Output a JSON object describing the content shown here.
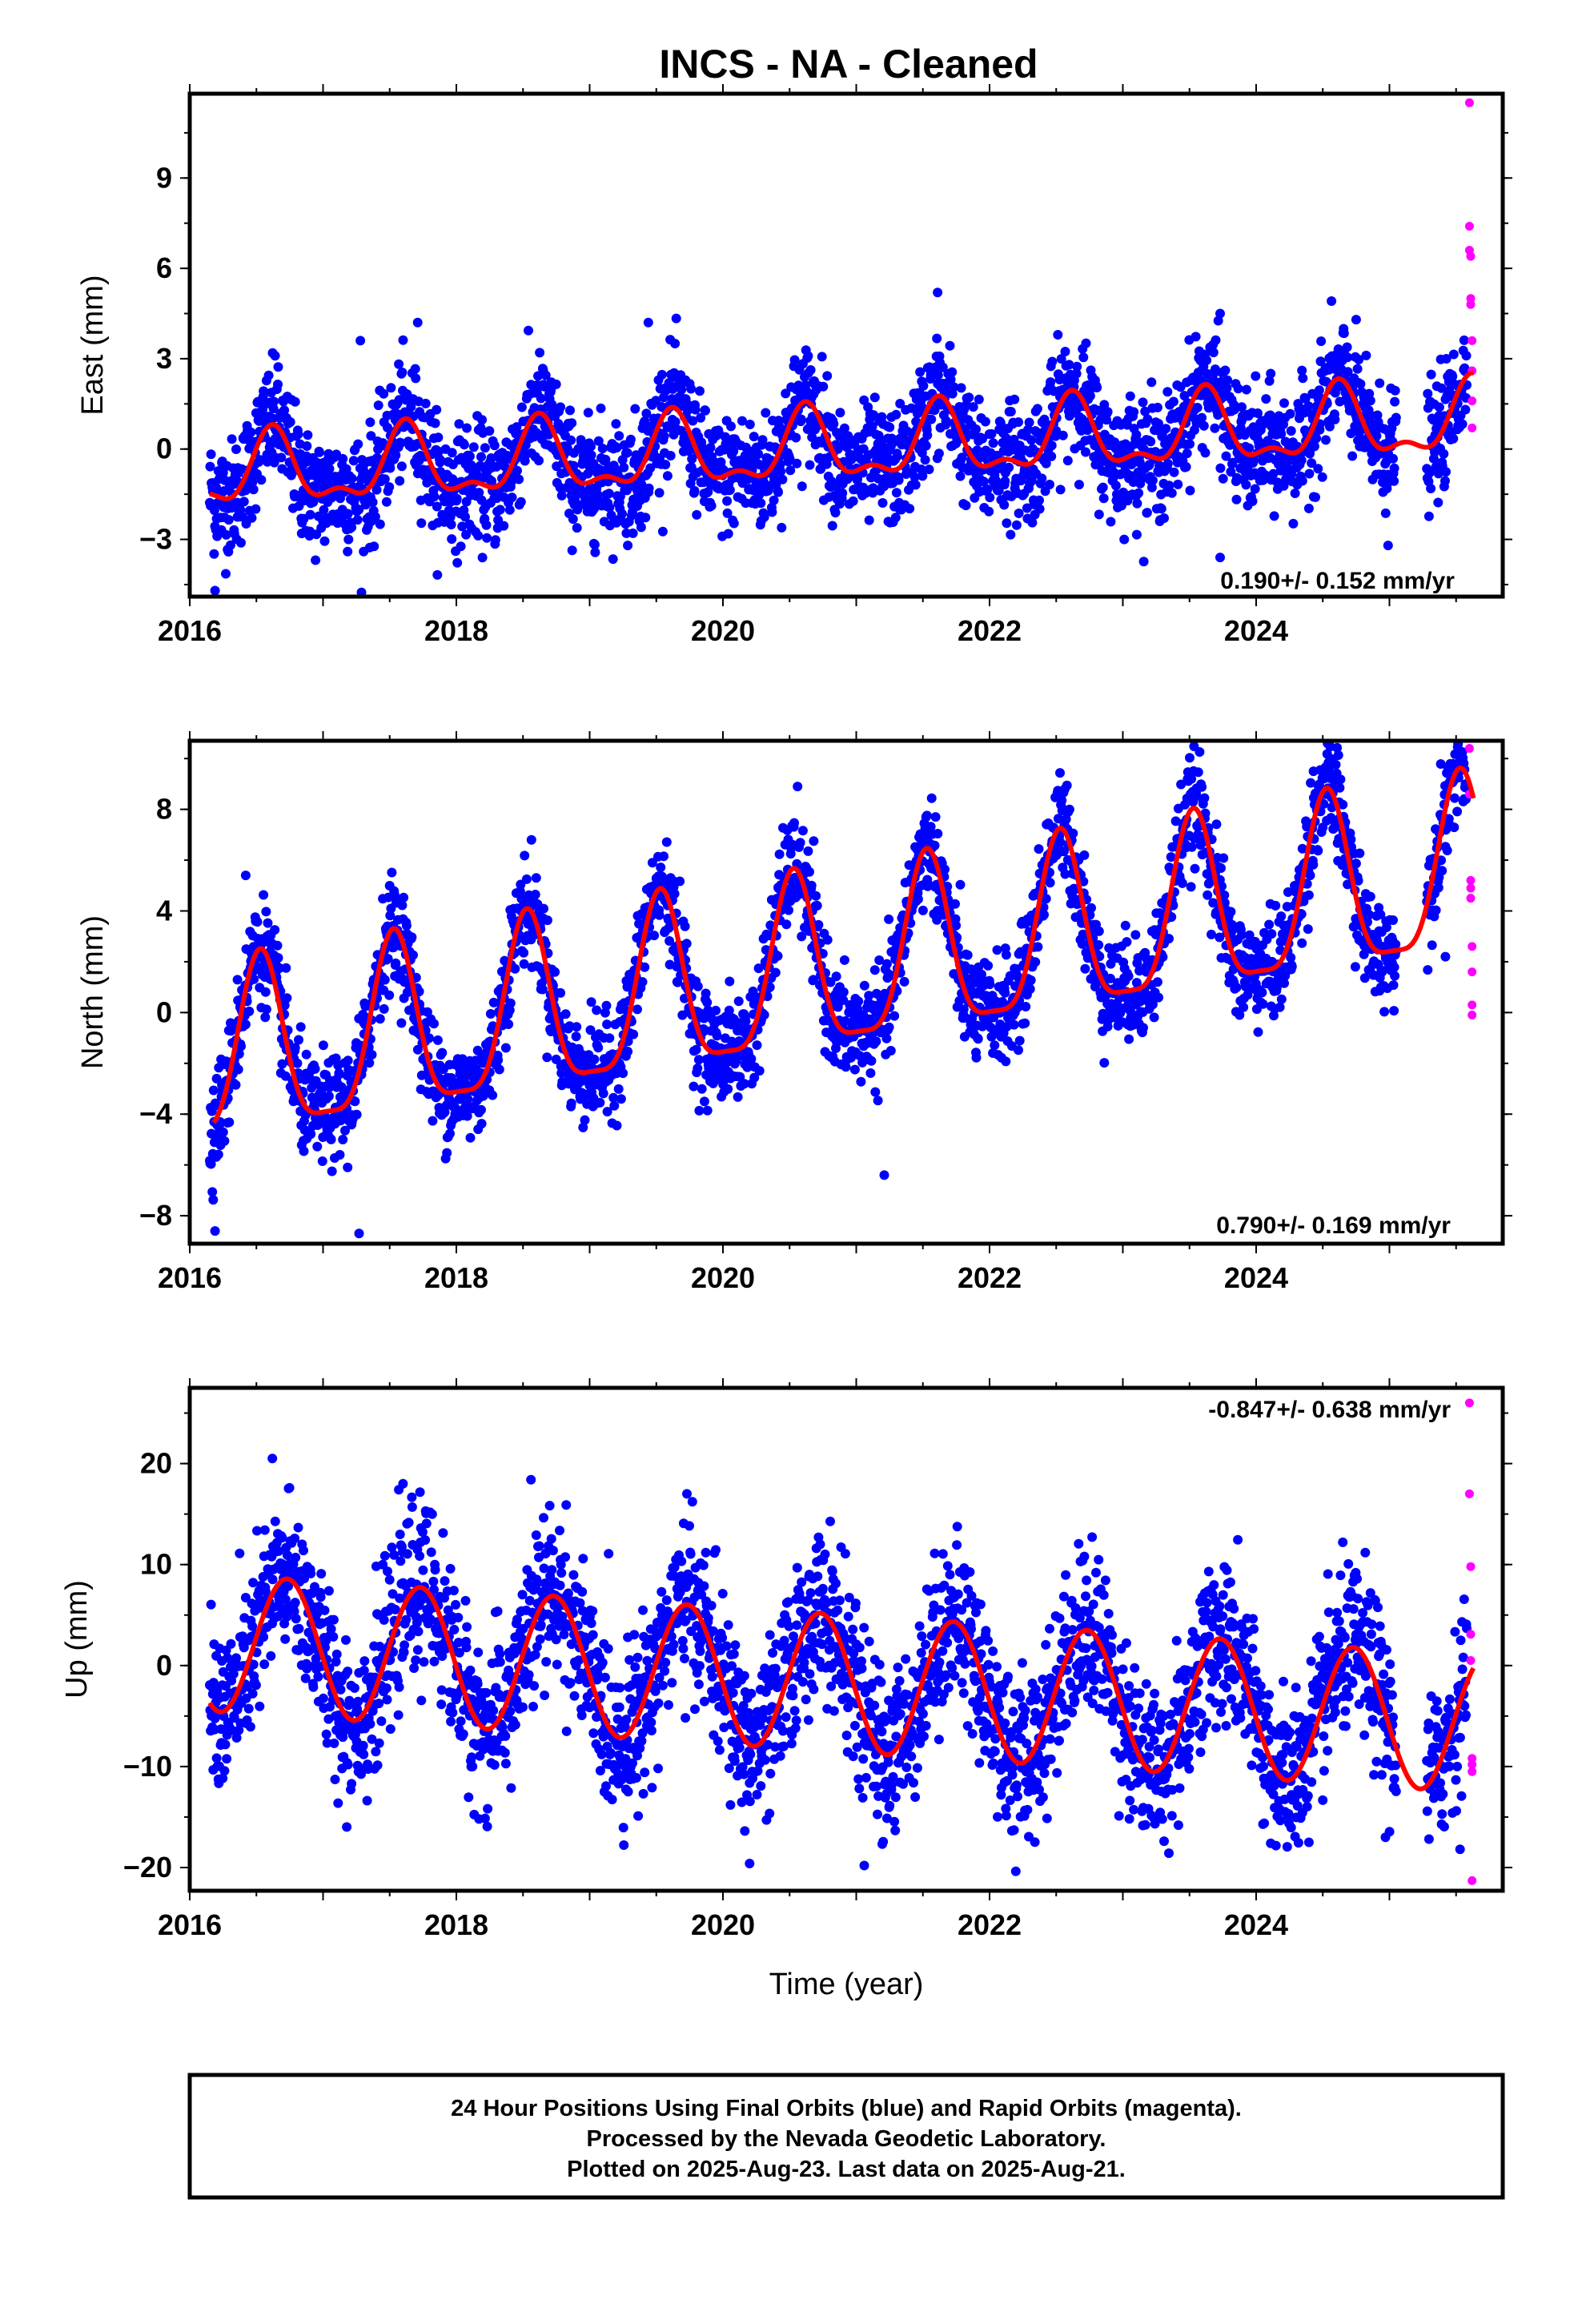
{
  "title": "INCS  - NA - Cleaned",
  "footer": {
    "line1": "24 Hour Positions Using Final Orbits (blue) and Rapid Orbits (magenta).",
    "line2": "Processed by the Nevada Geodetic Laboratory.",
    "line3": "Plotted on 2025-Aug-23. Last data on 2025-Aug-21."
  },
  "xlabel": "Time (year)",
  "colors": {
    "final": "#0000ff",
    "rapid": "#ff00ff",
    "model": "#ff0000",
    "frame": "#000000"
  },
  "chart_data": [
    {
      "type": "scatter",
      "name_ylabel": "East (mm)",
      "ylabel": "East (mm)",
      "xlim": [
        2016.0,
        2025.85
      ],
      "ylim": [
        -4.9,
        11.8
      ],
      "xticks": [
        2016,
        2018,
        2020,
        2022,
        2024
      ],
      "xtick_labels": [
        "2016",
        "2018",
        "2020",
        "2022",
        "2024"
      ],
      "yticks": [
        -3,
        0,
        3,
        6,
        9
      ],
      "ytick_labels": [
        "−3",
        "0",
        "3",
        "6",
        "9"
      ],
      "rate_label": "0.190+/- 0.152 mm/yr",
      "rate_position": "bottom-right",
      "model": {
        "intercept": -0.9,
        "slope": 0.19,
        "annual_amp": 1.1,
        "annual_phase_year": 2016.62,
        "semi_amp": 0.5,
        "start": 2016.15,
        "end": 2025.63
      },
      "scatter_stats": {
        "start": 2016.15,
        "end": 2025.58,
        "noise_mm": 0.95
      },
      "rapid": {
        "x": [
          2025.6,
          2025.6,
          2025.6,
          2025.61,
          2025.61,
          2025.61,
          2025.62,
          2025.62,
          2025.62,
          2025.62
        ],
        "y": [
          11.5,
          7.4,
          6.6,
          6.4,
          5.0,
          4.8,
          3.6,
          2.6,
          1.6,
          0.7
        ]
      },
      "anchors": [
        {
          "x": 2016.19,
          "y": -4.7
        },
        {
          "x": 2016.64,
          "y": 3.1
        },
        {
          "x": 2017.28,
          "y": 3.6
        },
        {
          "x": 2017.71,
          "y": 4.2
        },
        {
          "x": 2019.44,
          "y": 4.2
        },
        {
          "x": 2021.61,
          "y": 5.2
        },
        {
          "x": 2023.73,
          "y": 4.5
        },
        {
          "x": 2023.73,
          "y": -3.6
        },
        {
          "x": 2024.99,
          "y": -3.2
        }
      ]
    },
    {
      "type": "scatter",
      "ylabel": "North (mm)",
      "xlim": [
        2016.0,
        2025.85
      ],
      "ylim": [
        -9.1,
        10.7
      ],
      "xticks": [
        2016,
        2018,
        2020,
        2022,
        2024
      ],
      "xtick_labels": [
        "2016",
        "2018",
        "2020",
        "2022",
        "2024"
      ],
      "yticks": [
        -8,
        -4,
        0,
        4,
        8
      ],
      "ytick_labels": [
        "−8",
        "−4",
        "0",
        "4",
        "8"
      ],
      "rate_label": "0.790+/- 0.169 mm/yr",
      "rate_position": "bottom-right",
      "model": {
        "intercept": -2.2,
        "slope": 0.79,
        "annual_amp": 3.4,
        "annual_phase_year": 2016.53,
        "semi_amp": 0.9,
        "start": 2016.18,
        "end": 2025.63
      },
      "scatter_stats": {
        "start": 2016.15,
        "end": 2025.58,
        "noise_mm": 1.0
      },
      "rapid": {
        "x": [
          2025.6,
          2025.6,
          2025.61,
          2025.61,
          2025.61,
          2025.62,
          2025.62,
          2025.62,
          2025.62
        ],
        "y": [
          10.4,
          8.6,
          5.2,
          4.9,
          4.5,
          2.6,
          1.6,
          0.3,
          -0.1
        ]
      },
      "anchors": [
        {
          "x": 2016.19,
          "y": -8.6
        },
        {
          "x": 2016.42,
          "y": 5.4
        },
        {
          "x": 2017.27,
          "y": -8.7
        },
        {
          "x": 2020.56,
          "y": 8.9
        },
        {
          "x": 2021.21,
          "y": -6.4
        },
        {
          "x": 2022.53,
          "y": 8.7
        },
        {
          "x": 2024.43,
          "y": 9.5
        },
        {
          "x": 2025.42,
          "y": 2.2
        }
      ]
    },
    {
      "type": "scatter",
      "ylabel": "Up (mm)",
      "xlim": [
        2016.0,
        2025.85
      ],
      "ylim": [
        -22.3,
        27.5
      ],
      "xticks": [
        2016,
        2018,
        2020,
        2022,
        2024
      ],
      "xtick_labels": [
        "2016",
        "2018",
        "2020",
        "2022",
        "2024"
      ],
      "yticks": [
        -20,
        -10,
        0,
        10,
        20
      ],
      "ytick_labels": [
        "−20",
        "−10",
        "0",
        "10",
        "20"
      ],
      "rate_label": "-0.847+/- 0.638 mm/yr",
      "rate_position": "top-right",
      "model": {
        "intercept": 2.4,
        "slope": -0.847,
        "annual_amp": 6.8,
        "annual_phase_year": 2016.73,
        "semi_amp": 0.0,
        "start": 2016.15,
        "end": 2025.63
      },
      "scatter_stats": {
        "start": 2016.15,
        "end": 2025.58,
        "noise_mm": 4.0
      },
      "rapid": {
        "x": [
          2025.6,
          2025.6,
          2025.61,
          2025.61,
          2025.61,
          2025.62,
          2025.62,
          2025.62,
          2025.62
        ],
        "y": [
          26.0,
          17.0,
          9.8,
          3.1,
          0.5,
          -9.2,
          -9.8,
          -10.5,
          -21.3
        ]
      },
      "anchors": [
        {
          "x": 2016.62,
          "y": 20.5
        },
        {
          "x": 2017.6,
          "y": 18.0
        },
        {
          "x": 2018.56,
          "y": 18.4
        },
        {
          "x": 2019.73,
          "y": 17.0
        },
        {
          "x": 2020.2,
          "y": -19.6
        },
        {
          "x": 2021.06,
          "y": -19.8
        },
        {
          "x": 2024.97,
          "y": -17.0
        },
        {
          "x": 2025.53,
          "y": -18.2
        }
      ]
    }
  ]
}
